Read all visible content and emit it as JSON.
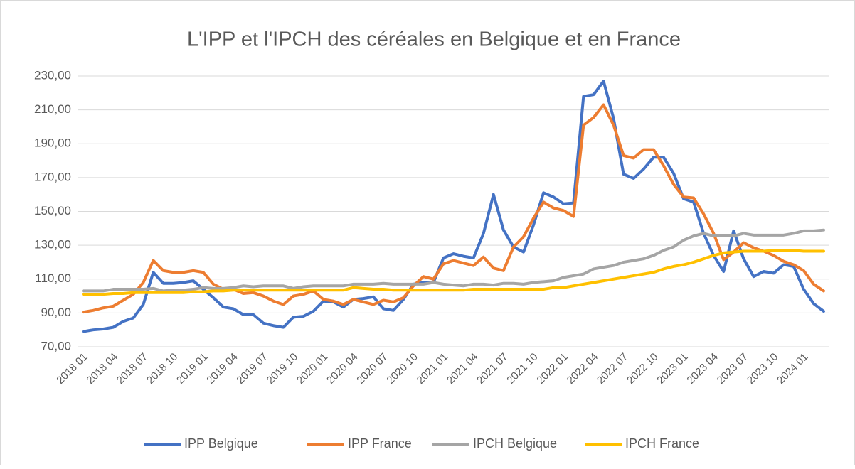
{
  "chart_data": {
    "type": "line",
    "title": "L'IPP et l'IPCH des céréales en Belgique et en France",
    "categories": [
      "2018 01",
      null,
      null,
      "2018 04",
      null,
      null,
      "2018 07",
      null,
      null,
      "2018 10",
      null,
      null,
      "2019 01",
      null,
      null,
      "2019 04",
      null,
      null,
      "2019 07",
      null,
      null,
      "2019 10",
      null,
      null,
      "2020 01",
      null,
      null,
      "2020 04",
      null,
      null,
      "2020 07",
      null,
      null,
      "2020 10",
      null,
      null,
      "2021 01",
      null,
      null,
      "2021 04",
      null,
      null,
      "2021 07",
      null,
      null,
      "2021 10",
      null,
      null,
      "2022 01",
      null,
      null,
      "2022 04",
      null,
      null,
      "2022 07",
      null,
      null,
      "2022 10",
      null,
      null,
      "2023 01",
      null,
      null,
      "2023 04",
      null,
      null,
      "2023 07",
      null,
      null,
      "2023 10",
      null,
      null,
      "2024 01",
      null,
      null
    ],
    "series": [
      {
        "name": "IPP Belgique",
        "color": "#4472c4",
        "values": [
          79,
          80,
          80.5,
          81.5,
          85,
          87,
          95,
          114,
          107.5,
          107.5,
          108,
          109,
          104,
          99,
          93.5,
          92.5,
          89,
          89,
          84,
          82.5,
          81.5,
          87.5,
          88,
          91,
          97,
          96.5,
          93.5,
          98,
          98.5,
          99.5,
          92.5,
          91.5,
          98,
          107,
          108,
          108,
          122.5,
          125,
          123.5,
          122.5,
          137,
          160,
          139,
          129,
          126,
          142,
          161,
          158.5,
          154.5,
          155,
          218,
          219,
          227,
          205,
          172,
          169.5,
          175,
          182,
          182,
          172.5,
          157.5,
          155.5,
          137,
          124,
          114.5,
          138.5,
          122,
          111.5,
          114.5,
          113.5,
          118.5,
          117.5,
          104,
          95.5,
          91
        ]
      },
      {
        "name": "IPP France",
        "color": "#ed7d31",
        "values": [
          90.5,
          91.5,
          93,
          94,
          97.5,
          101,
          108,
          121,
          115,
          114,
          114,
          115,
          114,
          107,
          104,
          104,
          101.5,
          102,
          100,
          97,
          95,
          100,
          101,
          103,
          98,
          97,
          95,
          98,
          96.5,
          95,
          97.5,
          96.5,
          99,
          106,
          111.5,
          110,
          119,
          121,
          119.5,
          118,
          123,
          116.5,
          115,
          129,
          135,
          146,
          155.5,
          152,
          150.5,
          147,
          201,
          205.5,
          213,
          201,
          183,
          181.5,
          186.5,
          186.5,
          177,
          166,
          158.5,
          158,
          148.5,
          137,
          121.5,
          126,
          131.5,
          128.5,
          126.5,
          124,
          120.5,
          118.5,
          115,
          107,
          103
        ]
      },
      {
        "name": "IPCH Belgique",
        "color": "#a5a5a5",
        "values": [
          103,
          103,
          103,
          104,
          104,
          104,
          104,
          104.5,
          103,
          103.5,
          103.5,
          104,
          105,
          104.5,
          104.5,
          105,
          106,
          105.5,
          106,
          106,
          106,
          104.5,
          105.5,
          106,
          106,
          106,
          106,
          107,
          107,
          107,
          107.5,
          107,
          107,
          107,
          107,
          108,
          107,
          106.5,
          106,
          107,
          107,
          106.5,
          107.5,
          107.5,
          107,
          108,
          108.5,
          109,
          111,
          112,
          113,
          116,
          117,
          118,
          120,
          121,
          122,
          124,
          127,
          129,
          133,
          135.5,
          137,
          135.5,
          135.5,
          135.5,
          137,
          136,
          136,
          136,
          136,
          137,
          138.5,
          138.5,
          139
        ]
      },
      {
        "name": "IPCH France",
        "color": "#ffc000",
        "values": [
          101,
          101,
          101,
          101.5,
          101.5,
          102,
          102,
          102,
          102,
          102,
          102,
          102.5,
          102.5,
          103,
          103,
          103.5,
          103.5,
          103.5,
          103.5,
          103.5,
          103.5,
          103.5,
          103.5,
          103.5,
          103.5,
          103.5,
          103.5,
          105,
          104.5,
          104,
          104,
          103.5,
          103.5,
          103.5,
          103.5,
          103.5,
          103.5,
          103.5,
          103.5,
          104,
          104,
          104,
          104,
          104,
          104,
          104,
          104,
          105,
          105,
          106,
          107,
          108,
          109,
          110,
          111,
          112,
          113,
          114,
          116,
          117.5,
          118.5,
          120,
          122,
          124,
          125.5,
          126,
          126.5,
          126.5,
          126.5,
          127,
          127,
          127,
          126.5,
          126.5,
          126.5
        ]
      }
    ],
    "ylim": [
      70,
      230
    ],
    "yticks": [
      {
        "value": 70,
        "label": "70,00"
      },
      {
        "value": 90,
        "label": "90,00"
      },
      {
        "value": 110,
        "label": "110,00"
      },
      {
        "value": 130,
        "label": "130,00"
      },
      {
        "value": 150,
        "label": "150,00"
      },
      {
        "value": 170,
        "label": "170,00"
      },
      {
        "value": 190,
        "label": "190,00"
      },
      {
        "value": 210,
        "label": "210,00"
      },
      {
        "value": 230,
        "label": "230,00"
      }
    ],
    "grid": true,
    "legend": "bottom"
  }
}
